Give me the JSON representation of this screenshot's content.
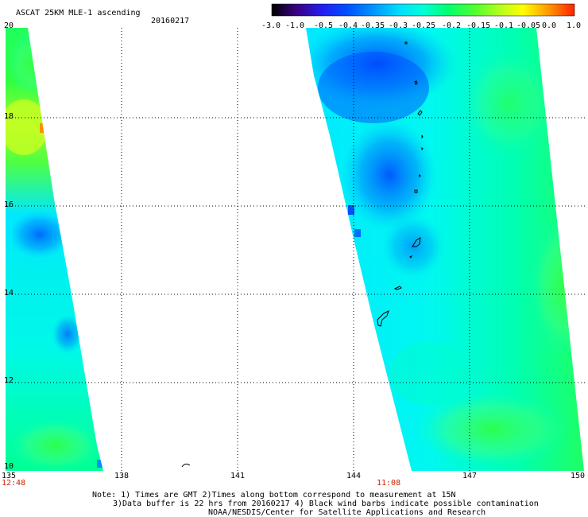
{
  "header": {
    "title": "ASCAT 25KM MLE-1 ascending",
    "date": "20160217"
  },
  "colorbar": {
    "labels": [
      "-3.0",
      "-1.0",
      "-0.5",
      "-0.4",
      "-0.35",
      "-0.3",
      "-0.25",
      "-0.2",
      "-0.15",
      "-0.1",
      "-0.05",
      "0.0",
      "1.0"
    ],
    "colors": [
      "#1a0020",
      "#3a0080",
      "#2020f0",
      "#0050ff",
      "#0090ff",
      "#00c8ff",
      "#00ffee",
      "#00ff90",
      "#40ff40",
      "#a0ff30",
      "#ffff00",
      "#ffa000",
      "#ff3000"
    ]
  },
  "axes": {
    "lon_labels": [
      "135",
      "138",
      "141",
      "144",
      "147",
      "150"
    ],
    "lat_labels": [
      "20",
      "18",
      "16",
      "14",
      "12",
      "10"
    ],
    "grid": true
  },
  "swath_times": {
    "left": "12:48",
    "right": "11:08"
  },
  "notes": {
    "line1": "Note: 1) Times are GMT 2)Times along bottom correspond to measurement at 15N",
    "line2": "3)Data buffer is 22 hrs from 20160217 4) Black wind barbs indicate possible contamination",
    "line3": "NOAA/NESDIS/Center for Satellite Applications and Research"
  },
  "colors": {
    "swath_cyan": "#00f0f0",
    "swath_blue": "#0050ff",
    "swath_green": "#30ff60",
    "time_label": "#cc2200"
  }
}
